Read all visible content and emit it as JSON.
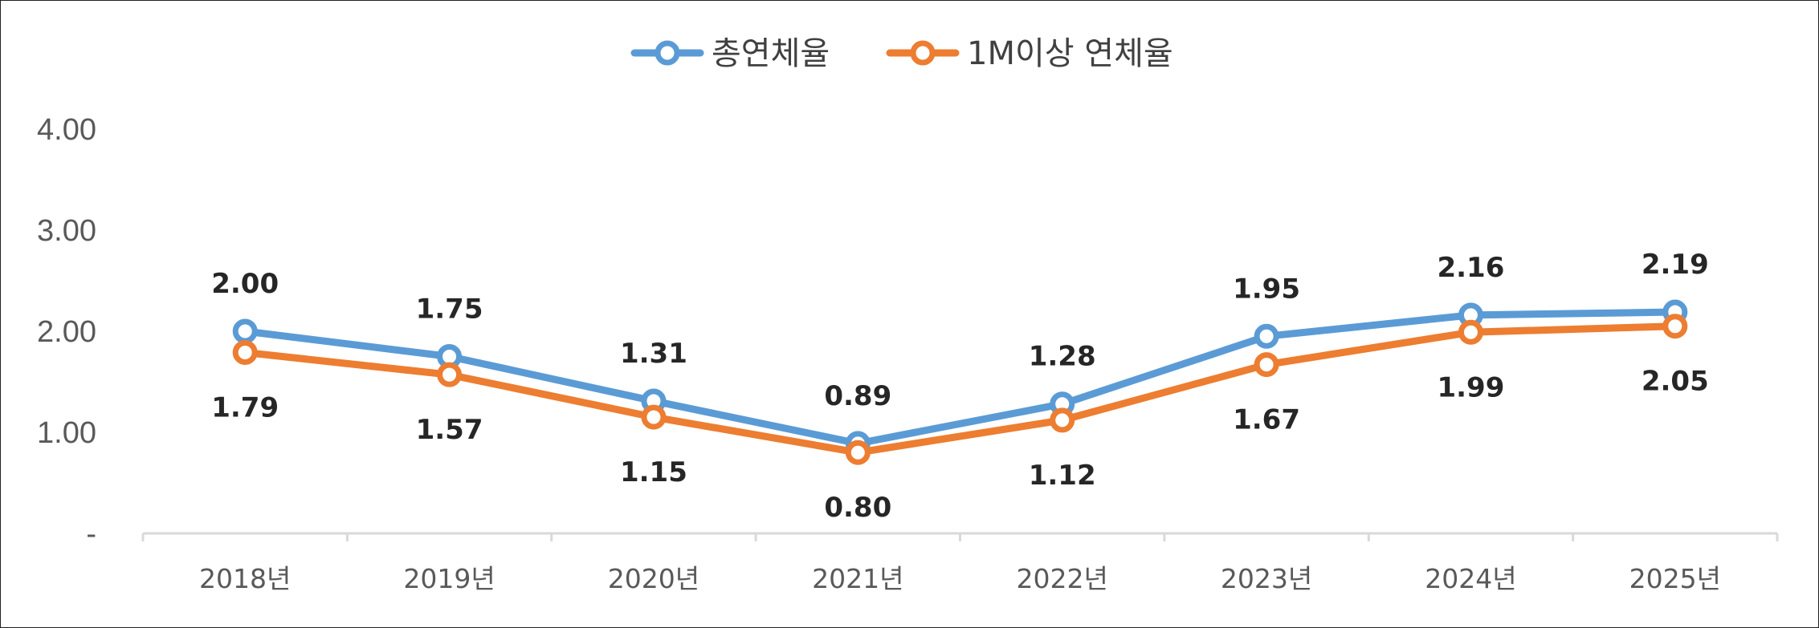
{
  "chart_data": {
    "type": "line",
    "categories": [
      "2018년",
      "2019년",
      "2020년",
      "2021년",
      "2022년",
      "2023년",
      "2024년",
      "2025년"
    ],
    "series": [
      {
        "name": "총연체율",
        "color": "#5B9BD5",
        "values": [
          2.0,
          1.75,
          1.31,
          0.89,
          1.28,
          1.95,
          2.16,
          2.19
        ]
      },
      {
        "name": "1M이상 연체율",
        "color": "#ED7D31",
        "values": [
          1.79,
          1.57,
          1.15,
          0.8,
          1.12,
          1.67,
          1.99,
          2.05
        ]
      }
    ],
    "y_ticks": [
      "-",
      "1.00",
      "2.00",
      "3.00",
      "4.00"
    ],
    "ylim": [
      0,
      4
    ],
    "legend": "top-center",
    "grid": false,
    "data_labels": true
  }
}
